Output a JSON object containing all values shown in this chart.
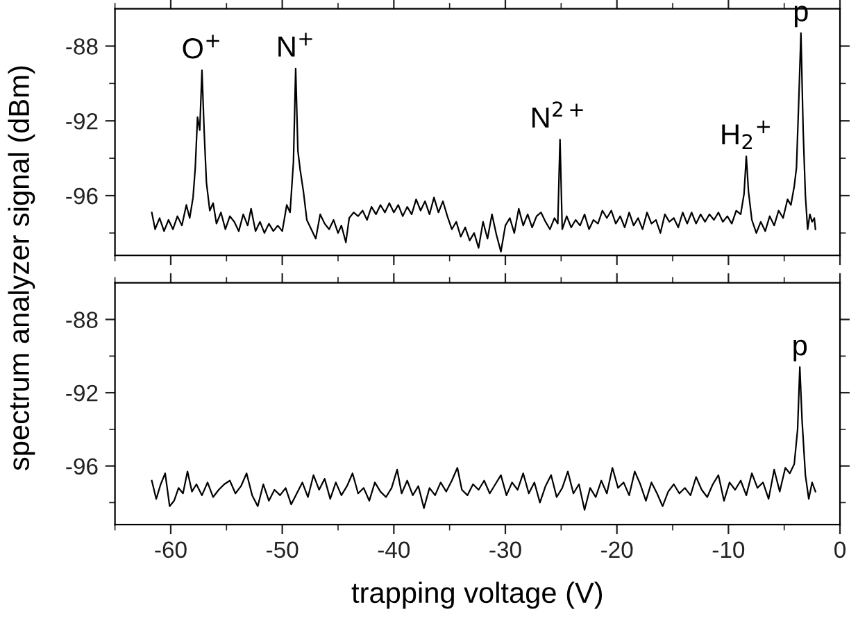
{
  "chart_data": [
    {
      "type": "line",
      "ylabel": "spectrum analyzer signal (dBm)",
      "xlim": [
        -65,
        0
      ],
      "ylim": [
        -99.2,
        -86
      ],
      "xticks": [
        -60,
        -50,
        -40,
        -30,
        -20,
        -10,
        0,
        {
          "value": -65,
          "label": null
        },
        {
          "value": -55,
          "label": null
        },
        {
          "value": -45,
          "label": null
        },
        {
          "value": -35,
          "label": null
        },
        {
          "value": -25,
          "label": null
        },
        {
          "value": -15,
          "label": null
        },
        {
          "value": -5,
          "label": null
        }
      ],
      "yticks": [
        -88,
        -92,
        -96,
        {
          "value": -90,
          "label": null
        },
        {
          "value": -94,
          "label": null
        },
        {
          "value": -98,
          "label": null
        }
      ],
      "tick_labels": "y",
      "grid": false,
      "legend": false,
      "marker": "none",
      "line_style": "solid",
      "annotations": [
        {
          "text": "O$^{+}$",
          "x": -57.2,
          "y": -89.3
        },
        {
          "text": "N$^{+}$",
          "x": -48.8,
          "y": -89.2
        },
        {
          "text": "N$^{2+}$",
          "x": -25.1,
          "y": -93.0
        },
        {
          "text": "H$_{2}$$^{+}$",
          "x": -8.4,
          "y": -93.9
        },
        {
          "text": "p",
          "x": -3.5,
          "y": -87.3
        }
      ],
      "series": [
        {
          "color": "#000000",
          "x": [
            -61.7,
            -61.4,
            -61.0,
            -60.6,
            -60.2,
            -59.8,
            -59.4,
            -59.0,
            -58.6,
            -58.3,
            -58.0,
            -57.8,
            -57.6,
            -57.4,
            -57.2,
            -57.0,
            -56.8,
            -56.5,
            -56.2,
            -55.9,
            -55.5,
            -55.1,
            -54.7,
            -54.3,
            -53.9,
            -53.5,
            -53.1,
            -52.8,
            -52.4,
            -52.0,
            -51.6,
            -51.2,
            -50.8,
            -50.4,
            -50.0,
            -49.6,
            -49.3,
            -49.0,
            -48.8,
            -48.6,
            -48.4,
            -48.1,
            -47.8,
            -47.4,
            -47.0,
            -46.6,
            -46.2,
            -45.8,
            -45.4,
            -45.0,
            -44.7,
            -44.3,
            -44.0,
            -43.6,
            -43.2,
            -42.8,
            -42.4,
            -42.0,
            -41.6,
            -41.2,
            -40.8,
            -40.4,
            -40.0,
            -39.6,
            -39.2,
            -38.8,
            -38.4,
            -38.0,
            -37.6,
            -37.2,
            -36.8,
            -36.4,
            -36.0,
            -35.6,
            -35.2,
            -34.8,
            -34.4,
            -34.0,
            -33.6,
            -33.2,
            -32.8,
            -32.4,
            -32.0,
            -31.6,
            -31.2,
            -30.8,
            -30.4,
            -30.0,
            -29.6,
            -29.2,
            -28.8,
            -28.4,
            -28.0,
            -27.6,
            -27.2,
            -26.8,
            -26.4,
            -26.0,
            -25.6,
            -25.3,
            -25.1,
            -24.9,
            -24.5,
            -24.1,
            -23.7,
            -23.3,
            -22.9,
            -22.5,
            -22.1,
            -21.7,
            -21.3,
            -20.9,
            -20.5,
            -20.1,
            -19.7,
            -19.3,
            -18.9,
            -18.5,
            -18.1,
            -17.7,
            -17.3,
            -16.9,
            -16.5,
            -16.1,
            -15.7,
            -15.3,
            -14.9,
            -14.5,
            -14.1,
            -13.7,
            -13.3,
            -12.9,
            -12.5,
            -12.1,
            -11.7,
            -11.3,
            -10.9,
            -10.5,
            -10.1,
            -9.7,
            -9.3,
            -8.9,
            -8.6,
            -8.4,
            -8.2,
            -7.9,
            -7.5,
            -7.1,
            -6.7,
            -6.3,
            -5.9,
            -5.5,
            -5.1,
            -4.7,
            -4.4,
            -4.1,
            -3.9,
            -3.7,
            -3.5,
            -3.3,
            -3.1,
            -2.9,
            -2.7,
            -2.5,
            -2.3,
            -2.2
          ],
          "values": [
            -96.9,
            -97.8,
            -97.2,
            -97.9,
            -97.3,
            -97.8,
            -97.1,
            -97.6,
            -96.5,
            -97.2,
            -96.1,
            -94.5,
            -91.8,
            -92.5,
            -89.3,
            -92.6,
            -95.3,
            -96.8,
            -96.4,
            -97.5,
            -96.9,
            -97.8,
            -97.1,
            -97.4,
            -97.9,
            -97.0,
            -97.6,
            -96.7,
            -97.9,
            -97.4,
            -98.0,
            -97.5,
            -97.9,
            -97.6,
            -97.9,
            -96.5,
            -96.9,
            -94.2,
            -89.2,
            -93.6,
            -94.6,
            -95.8,
            -97.3,
            -97.8,
            -98.3,
            -97.0,
            -97.5,
            -97.8,
            -97.3,
            -98.0,
            -97.6,
            -98.5,
            -97.2,
            -96.9,
            -97.1,
            -96.8,
            -97.3,
            -96.6,
            -97.0,
            -96.5,
            -96.9,
            -96.4,
            -96.9,
            -96.5,
            -97.1,
            -96.6,
            -97.0,
            -96.2,
            -96.8,
            -96.3,
            -97.0,
            -96.1,
            -96.9,
            -96.3,
            -97.1,
            -97.8,
            -97.4,
            -98.2,
            -97.7,
            -98.4,
            -98.0,
            -98.8,
            -97.4,
            -98.3,
            -97.0,
            -98.1,
            -99.0,
            -97.6,
            -97.2,
            -98.0,
            -96.7,
            -97.6,
            -97.0,
            -97.7,
            -97.1,
            -96.9,
            -97.4,
            -97.8,
            -97.2,
            -97.5,
            -93.0,
            -97.8,
            -97.1,
            -97.7,
            -97.3,
            -97.6,
            -97.0,
            -97.8,
            -97.3,
            -97.5,
            -96.8,
            -97.2,
            -96.8,
            -97.5,
            -97.1,
            -97.7,
            -96.9,
            -97.6,
            -97.2,
            -97.8,
            -96.9,
            -97.5,
            -97.3,
            -98.0,
            -97.0,
            -97.4,
            -97.2,
            -97.7,
            -96.9,
            -97.5,
            -96.9,
            -97.5,
            -97.0,
            -97.4,
            -97.0,
            -97.3,
            -96.9,
            -97.4,
            -97.1,
            -97.5,
            -96.8,
            -97.0,
            -95.9,
            -93.9,
            -95.8,
            -97.3,
            -98.0,
            -97.4,
            -97.9,
            -97.1,
            -97.6,
            -96.8,
            -97.2,
            -96.2,
            -96.5,
            -95.5,
            -94.5,
            -91.0,
            -87.3,
            -92.5,
            -96.0,
            -97.8,
            -97.0,
            -97.4,
            -97.2,
            -97.8
          ]
        }
      ]
    },
    {
      "type": "line",
      "xlabel": "trapping voltage (V)",
      "xlim": [
        -65,
        0
      ],
      "ylim": [
        -99.2,
        -86
      ],
      "xticks": [
        -60,
        -50,
        -40,
        -30,
        -20,
        -10,
        0,
        {
          "value": -65,
          "label": null
        },
        {
          "value": -55,
          "label": null
        },
        {
          "value": -45,
          "label": null
        },
        {
          "value": -35,
          "label": null
        },
        {
          "value": -25,
          "label": null
        },
        {
          "value": -15,
          "label": null
        },
        {
          "value": -5,
          "label": null
        }
      ],
      "yticks": [
        -88,
        -92,
        -96,
        {
          "value": -90,
          "label": null
        },
        {
          "value": -94,
          "label": null
        },
        {
          "value": -98,
          "label": null
        }
      ],
      "grid": false,
      "legend": false,
      "marker": "none",
      "line_style": "solid",
      "annotations": [
        {
          "text": "p",
          "x": -3.6,
          "y": -90.6
        }
      ],
      "series": [
        {
          "color": "#000000",
          "x": [
            -61.7,
            -61.3,
            -60.9,
            -60.5,
            -60.1,
            -59.7,
            -59.3,
            -58.9,
            -58.5,
            -58.1,
            -57.7,
            -57.2,
            -56.7,
            -56.2,
            -55.7,
            -55.2,
            -54.7,
            -54.2,
            -53.7,
            -53.2,
            -52.7,
            -52.2,
            -51.7,
            -51.2,
            -50.7,
            -50.2,
            -49.7,
            -49.2,
            -48.7,
            -48.2,
            -47.7,
            -47.2,
            -46.7,
            -46.2,
            -45.7,
            -45.2,
            -44.7,
            -44.2,
            -43.7,
            -43.2,
            -42.7,
            -42.2,
            -41.7,
            -41.2,
            -40.7,
            -40.2,
            -39.7,
            -39.3,
            -38.8,
            -38.3,
            -37.8,
            -37.3,
            -36.8,
            -36.3,
            -35.8,
            -35.3,
            -34.8,
            -34.3,
            -33.9,
            -33.4,
            -32.9,
            -32.4,
            -31.9,
            -31.4,
            -30.9,
            -30.4,
            -29.9,
            -29.4,
            -28.9,
            -28.4,
            -27.9,
            -27.4,
            -26.9,
            -26.4,
            -25.9,
            -25.4,
            -24.9,
            -24.4,
            -23.9,
            -23.4,
            -22.9,
            -22.4,
            -21.9,
            -21.4,
            -20.9,
            -20.4,
            -19.9,
            -19.4,
            -18.9,
            -18.4,
            -17.9,
            -17.4,
            -16.9,
            -16.4,
            -15.9,
            -15.4,
            -14.9,
            -14.4,
            -13.9,
            -13.4,
            -12.9,
            -12.4,
            -11.9,
            -11.4,
            -10.9,
            -10.4,
            -9.9,
            -9.4,
            -8.9,
            -8.4,
            -7.9,
            -7.4,
            -6.9,
            -6.4,
            -5.9,
            -5.4,
            -4.9,
            -4.5,
            -4.1,
            -3.8,
            -3.6,
            -3.4,
            -3.1,
            -2.8,
            -2.5,
            -2.2
          ],
          "values": [
            -96.8,
            -97.8,
            -97.0,
            -96.4,
            -98.2,
            -97.9,
            -97.2,
            -97.5,
            -96.3,
            -97.4,
            -97.0,
            -97.6,
            -96.9,
            -97.7,
            -97.3,
            -97.0,
            -96.8,
            -97.5,
            -97.1,
            -96.4,
            -97.6,
            -98.2,
            -97.0,
            -97.9,
            -97.3,
            -97.6,
            -97.2,
            -98.1,
            -97.5,
            -96.9,
            -97.7,
            -96.5,
            -97.3,
            -96.7,
            -97.8,
            -96.9,
            -97.6,
            -97.1,
            -96.4,
            -97.5,
            -97.2,
            -97.9,
            -96.9,
            -97.4,
            -97.7,
            -97.2,
            -96.2,
            -97.5,
            -96.8,
            -97.6,
            -97.1,
            -98.3,
            -97.2,
            -97.6,
            -96.9,
            -97.4,
            -96.8,
            -96.1,
            -97.3,
            -97.6,
            -97.0,
            -97.3,
            -96.8,
            -97.5,
            -97.0,
            -96.5,
            -97.6,
            -96.9,
            -97.3,
            -96.4,
            -97.5,
            -96.9,
            -98.0,
            -97.1,
            -96.5,
            -97.7,
            -97.2,
            -96.3,
            -97.5,
            -97.0,
            -98.4,
            -97.2,
            -97.7,
            -96.8,
            -97.5,
            -96.1,
            -97.2,
            -96.9,
            -97.6,
            -96.3,
            -97.0,
            -97.9,
            -96.9,
            -97.5,
            -98.2,
            -97.4,
            -97.0,
            -97.5,
            -97.2,
            -97.6,
            -96.6,
            -97.3,
            -97.7,
            -97.0,
            -96.5,
            -97.9,
            -96.9,
            -97.3,
            -96.8,
            -97.6,
            -96.4,
            -97.2,
            -96.9,
            -97.8,
            -96.2,
            -97.4,
            -96.1,
            -96.4,
            -95.9,
            -94.0,
            -90.6,
            -93.5,
            -96.5,
            -97.8,
            -96.9,
            -97.4
          ]
        }
      ]
    }
  ]
}
